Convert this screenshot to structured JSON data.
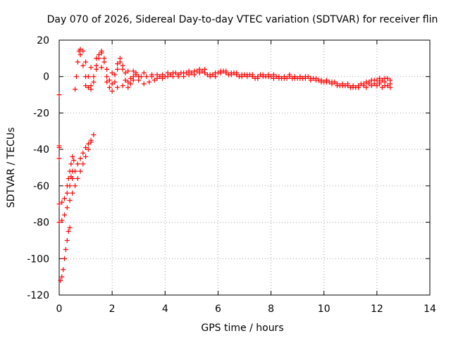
{
  "chart_data": {
    "type": "scatter",
    "title": "Day 070 of 2026, Sidereal Day-to-day VTEC variation (SDTVAR) for receiver flin",
    "xlabel": "GPS time / hours",
    "ylabel": "SDTVAR / TECUs",
    "xlim": [
      0,
      14
    ],
    "ylim": [
      -120,
      20
    ],
    "x_ticks": [
      0,
      2,
      4,
      6,
      8,
      10,
      12,
      14
    ],
    "y_ticks": [
      -120,
      -100,
      -80,
      -60,
      -40,
      -20,
      0,
      20
    ],
    "grid": true,
    "marker": "plus",
    "color": "#ff0000",
    "series": [
      {
        "points": [
          [
            0.0,
            -10
          ],
          [
            0.0,
            -38
          ],
          [
            0.0,
            -39
          ],
          [
            0.0,
            -45
          ],
          [
            0.05,
            -112
          ],
          [
            0.1,
            -110
          ],
          [
            0.15,
            -106
          ],
          [
            0.2,
            -100
          ],
          [
            0.25,
            -95
          ],
          [
            0.3,
            -90
          ],
          [
            0.35,
            -85
          ],
          [
            0.4,
            -83
          ],
          [
            0.0,
            -80
          ],
          [
            0.1,
            -79
          ],
          [
            0.2,
            -76
          ],
          [
            0.3,
            -72
          ],
          [
            0.4,
            -68
          ],
          [
            0.5,
            -64
          ],
          [
            0.6,
            -60
          ],
          [
            0.7,
            -56
          ],
          [
            0.8,
            -52
          ],
          [
            0.9,
            -48
          ],
          [
            1.0,
            -44
          ],
          [
            1.1,
            -40
          ],
          [
            1.2,
            -36
          ],
          [
            1.3,
            -32
          ],
          [
            0.0,
            -70
          ],
          [
            0.1,
            -69
          ],
          [
            0.2,
            -67
          ],
          [
            0.3,
            -64
          ],
          [
            0.4,
            -60
          ],
          [
            0.5,
            -56
          ],
          [
            0.6,
            -52
          ],
          [
            0.7,
            -48
          ],
          [
            0.8,
            -45
          ],
          [
            0.9,
            -42
          ],
          [
            1.0,
            -39
          ],
          [
            1.1,
            -37
          ],
          [
            1.2,
            -35
          ],
          [
            0.3,
            -60
          ],
          [
            0.35,
            -56
          ],
          [
            0.4,
            -52
          ],
          [
            0.45,
            -48
          ],
          [
            0.5,
            -44
          ],
          [
            0.55,
            -46
          ],
          [
            0.5,
            -52
          ],
          [
            0.45,
            -55
          ],
          [
            0.6,
            -7
          ],
          [
            0.65,
            0
          ],
          [
            0.7,
            8
          ],
          [
            0.75,
            14
          ],
          [
            0.8,
            15
          ],
          [
            0.9,
            14
          ],
          [
            1.0,
            8
          ],
          [
            1.1,
            0
          ],
          [
            1.2,
            -5
          ],
          [
            1.3,
            -3
          ],
          [
            1.4,
            4
          ],
          [
            1.5,
            10
          ],
          [
            1.6,
            13
          ],
          [
            1.7,
            10
          ],
          [
            1.8,
            4
          ],
          [
            1.9,
            -2
          ],
          [
            2.0,
            -4
          ],
          [
            2.1,
            1
          ],
          [
            2.2,
            7
          ],
          [
            2.3,
            10
          ],
          [
            2.4,
            6
          ],
          [
            2.5,
            2
          ],
          [
            2.6,
            -3
          ],
          [
            2.7,
            -1
          ],
          [
            2.8,
            3
          ],
          [
            2.9,
            1
          ],
          [
            3.0,
            -2
          ],
          [
            3.1,
            0
          ],
          [
            3.2,
            2
          ],
          [
            3.3,
            0
          ],
          [
            0.8,
            12
          ],
          [
            0.9,
            6
          ],
          [
            1.0,
            0
          ],
          [
            1.1,
            -6
          ],
          [
            1.2,
            -7
          ],
          [
            1.3,
            0
          ],
          [
            1.4,
            6
          ],
          [
            1.5,
            12
          ],
          [
            1.6,
            14
          ],
          [
            1.7,
            8
          ],
          [
            1.8,
            0
          ],
          [
            1.9,
            -6
          ],
          [
            2.0,
            -8
          ],
          [
            2.1,
            -3
          ],
          [
            2.2,
            4
          ],
          [
            2.3,
            8
          ],
          [
            2.4,
            4
          ],
          [
            2.5,
            -2
          ],
          [
            2.6,
            -6
          ],
          [
            2.7,
            -4
          ],
          [
            2.8,
            0
          ],
          [
            2.9,
            2
          ],
          [
            3.0,
            0
          ],
          [
            3.2,
            -4
          ],
          [
            3.4,
            -3
          ],
          [
            1.0,
            -5
          ],
          [
            1.2,
            5
          ],
          [
            1.4,
            10
          ],
          [
            1.6,
            5
          ],
          [
            1.8,
            -3
          ],
          [
            2.0,
            2
          ],
          [
            2.2,
            -6
          ],
          [
            2.4,
            -5
          ],
          [
            2.6,
            3
          ],
          [
            2.8,
            -2
          ],
          [
            3.5,
            0
          ],
          [
            3.6,
            -2
          ],
          [
            3.7,
            -1
          ],
          [
            3.8,
            0
          ],
          [
            3.9,
            1
          ],
          [
            4.0,
            0
          ],
          [
            4.1,
            2
          ],
          [
            4.2,
            1
          ],
          [
            4.3,
            0
          ],
          [
            4.4,
            2
          ],
          [
            4.5,
            1
          ],
          [
            4.6,
            2
          ],
          [
            4.7,
            0
          ],
          [
            4.8,
            2
          ],
          [
            4.9,
            3
          ],
          [
            5.0,
            2
          ],
          [
            5.1,
            1
          ],
          [
            5.2,
            3
          ],
          [
            5.3,
            4
          ],
          [
            5.4,
            3
          ],
          [
            5.5,
            2
          ],
          [
            5.6,
            1
          ],
          [
            5.7,
            0
          ],
          [
            5.8,
            1
          ],
          [
            5.9,
            2
          ],
          [
            6.0,
            2
          ],
          [
            6.1,
            3
          ],
          [
            6.2,
            3
          ],
          [
            6.3,
            2
          ],
          [
            6.4,
            1
          ],
          [
            6.5,
            2
          ],
          [
            6.6,
            2
          ],
          [
            6.7,
            1
          ],
          [
            6.8,
            0
          ],
          [
            6.9,
            1
          ],
          [
            7.0,
            1
          ],
          [
            7.1,
            0
          ],
          [
            7.2,
            1
          ],
          [
            7.3,
            0
          ],
          [
            7.4,
            -1
          ],
          [
            7.5,
            0
          ],
          [
            7.6,
            1
          ],
          [
            7.7,
            0
          ],
          [
            7.8,
            0
          ],
          [
            7.9,
            1
          ],
          [
            8.0,
            0
          ],
          [
            8.1,
            -1
          ],
          [
            8.2,
            0
          ],
          [
            8.3,
            0
          ],
          [
            8.4,
            -1
          ],
          [
            8.5,
            0
          ],
          [
            8.6,
            -1
          ],
          [
            8.7,
            0
          ],
          [
            8.8,
            -1
          ],
          [
            8.9,
            0
          ],
          [
            9.0,
            -1
          ],
          [
            9.1,
            0
          ],
          [
            9.2,
            -1
          ],
          [
            9.3,
            -1
          ],
          [
            9.4,
            0
          ],
          [
            9.5,
            -1
          ],
          [
            9.6,
            -1
          ],
          [
            9.7,
            -2
          ],
          [
            9.8,
            -2
          ],
          [
            9.9,
            -3
          ],
          [
            10.0,
            -3
          ],
          [
            10.1,
            -2
          ],
          [
            10.2,
            -3
          ],
          [
            10.3,
            -4
          ],
          [
            10.4,
            -3
          ],
          [
            10.5,
            -4
          ],
          [
            10.6,
            -5
          ],
          [
            10.7,
            -4
          ],
          [
            10.8,
            -5
          ],
          [
            10.9,
            -5
          ],
          [
            11.0,
            -6
          ],
          [
            11.1,
            -5
          ],
          [
            11.2,
            -6
          ],
          [
            11.3,
            -5
          ],
          [
            11.4,
            -4
          ],
          [
            11.5,
            -4
          ],
          [
            11.6,
            -3
          ],
          [
            11.7,
            -3
          ],
          [
            11.8,
            -2
          ],
          [
            11.9,
            -2
          ],
          [
            12.0,
            -2
          ],
          [
            12.1,
            -1
          ],
          [
            12.2,
            -2
          ],
          [
            12.3,
            -1
          ],
          [
            12.4,
            -1
          ],
          [
            12.5,
            -2
          ],
          [
            3.5,
            1
          ],
          [
            3.7,
            1
          ],
          [
            3.9,
            -1
          ],
          [
            4.1,
            0
          ],
          [
            4.3,
            2
          ],
          [
            4.5,
            0
          ],
          [
            4.7,
            2
          ],
          [
            4.9,
            1
          ],
          [
            5.1,
            3
          ],
          [
            5.3,
            2
          ],
          [
            5.5,
            4
          ],
          [
            5.7,
            1
          ],
          [
            5.9,
            0
          ],
          [
            6.1,
            2
          ],
          [
            6.3,
            3
          ],
          [
            6.5,
            1
          ],
          [
            6.7,
            2
          ],
          [
            6.9,
            0
          ],
          [
            7.1,
            1
          ],
          [
            7.3,
            1
          ],
          [
            7.5,
            -1
          ],
          [
            7.7,
            1
          ],
          [
            7.9,
            0
          ],
          [
            8.1,
            1
          ],
          [
            8.3,
            -1
          ],
          [
            8.5,
            -1
          ],
          [
            8.7,
            1
          ],
          [
            8.9,
            -1
          ],
          [
            9.1,
            -1
          ],
          [
            9.3,
            0
          ],
          [
            9.5,
            -2
          ],
          [
            9.7,
            -1
          ],
          [
            9.9,
            -2
          ],
          [
            10.1,
            -3
          ],
          [
            10.3,
            -3
          ],
          [
            10.5,
            -5
          ],
          [
            10.7,
            -5
          ],
          [
            10.9,
            -4
          ],
          [
            11.1,
            -6
          ],
          [
            11.3,
            -6
          ],
          [
            11.5,
            -5
          ],
          [
            11.7,
            -4
          ],
          [
            11.9,
            -4
          ],
          [
            12.1,
            -4
          ],
          [
            12.3,
            -5
          ],
          [
            12.5,
            -6
          ],
          [
            11.6,
            -6
          ],
          [
            11.8,
            -5
          ],
          [
            12.0,
            -5
          ],
          [
            12.2,
            -6
          ],
          [
            12.4,
            -5
          ],
          [
            12.5,
            -4
          ],
          [
            12.3,
            -3
          ],
          [
            12.1,
            -3
          ]
        ]
      }
    ]
  }
}
